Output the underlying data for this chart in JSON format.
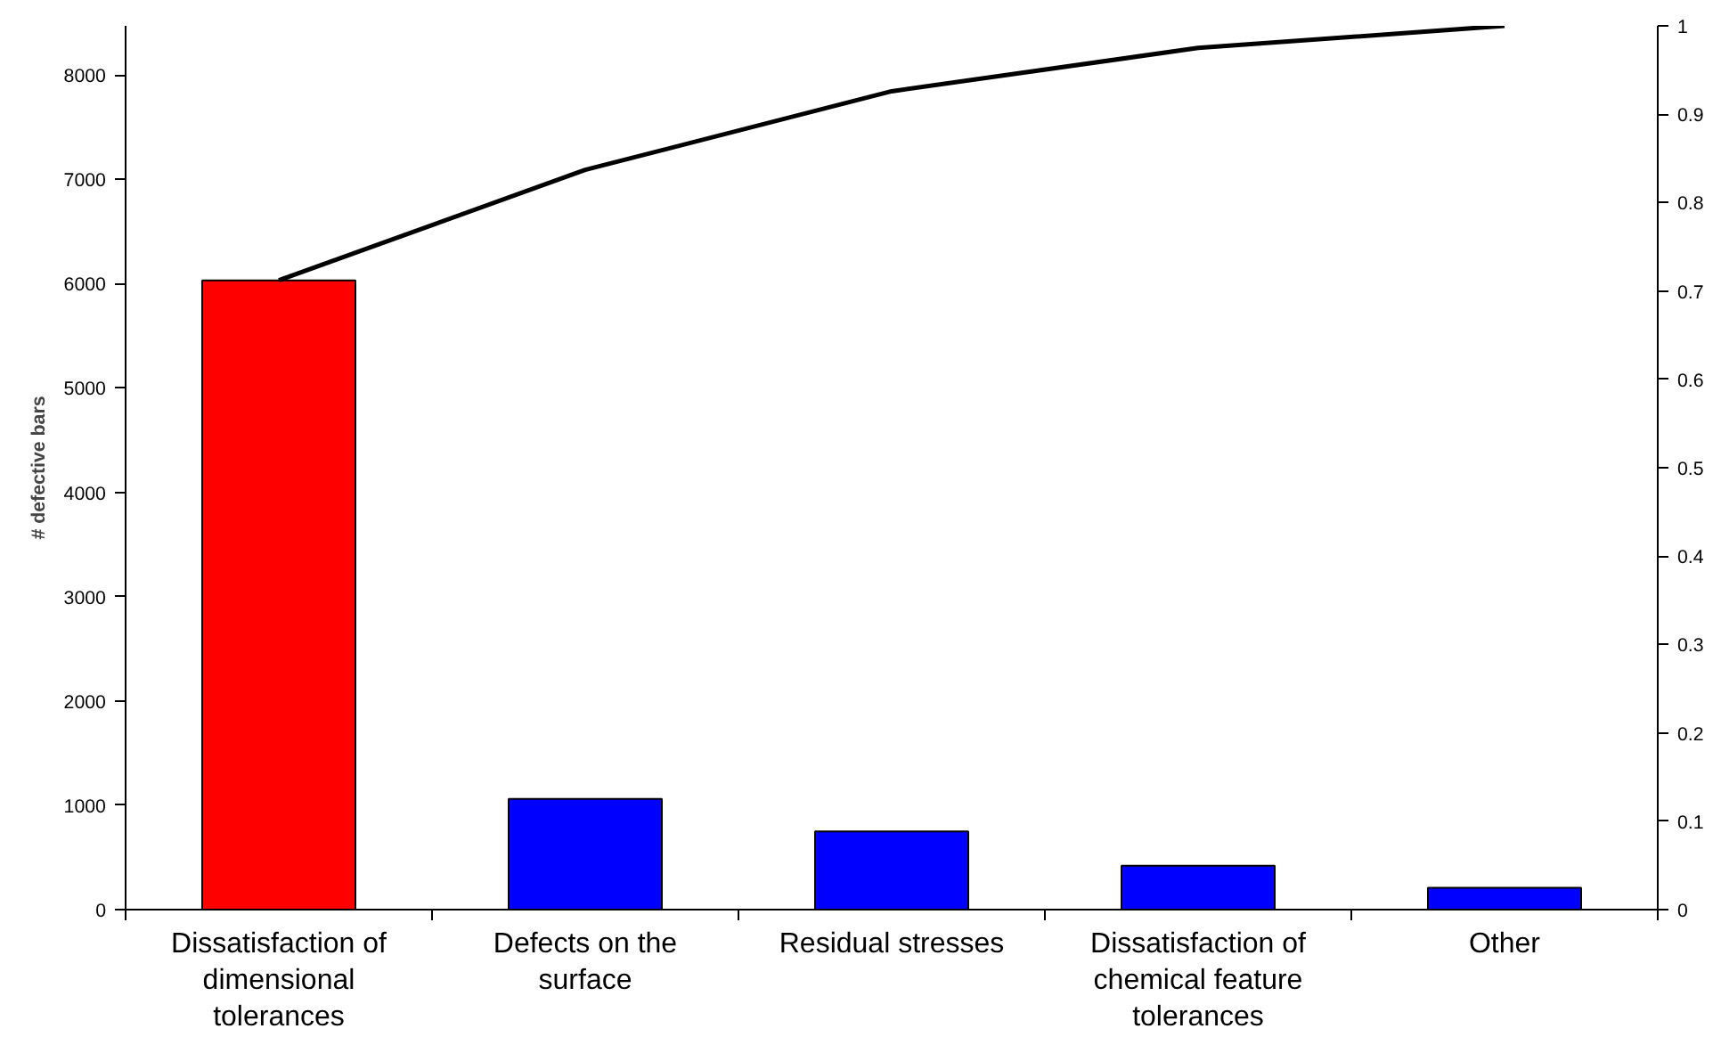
{
  "chart_data": {
    "type": "bar",
    "ylabel": "# defective bars",
    "categories": [
      "Dissatisfaction of dimensional tolerances",
      "Defects on the surface",
      "Residual stresses",
      "Dissatisfaction of chemical feature tolerances",
      "Other"
    ],
    "series": [
      {
        "values": [
          6030,
          1060,
          750,
          420,
          210
        ],
        "colors": [
          "#ff0000",
          "#0000ff",
          "#0000ff",
          "#0000ff",
          "#0000ff"
        ]
      },
      {
        "type": "line",
        "axis": "y2",
        "color": "#000000",
        "values": [
          0.712,
          0.837,
          0.926,
          0.975,
          1.0
        ]
      }
    ],
    "ylim": [
      0,
      8470
    ],
    "yticks": [
      0,
      1000,
      2000,
      3000,
      4000,
      5000,
      6000,
      7000,
      8000
    ],
    "y2lim": [
      0,
      1
    ],
    "y2ticks": [
      0,
      0.1,
      0.2,
      0.3,
      0.4,
      0.5,
      0.6,
      0.7,
      0.8,
      0.9,
      1
    ],
    "grid": false
  }
}
